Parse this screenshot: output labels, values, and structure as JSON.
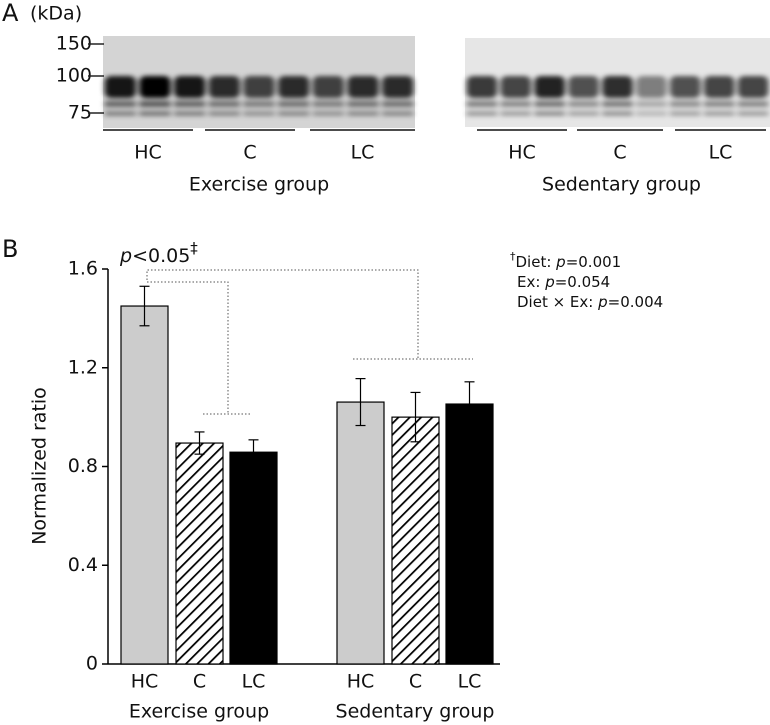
{
  "panel_a": {
    "label": "A",
    "unit": "(kDa)",
    "markers": [
      150,
      100,
      75
    ],
    "blots": [
      {
        "name": "Exercise group",
        "groups": [
          "HC",
          "C",
          "LC"
        ]
      },
      {
        "name": "Sedentary group",
        "groups": [
          "HC",
          "C",
          "LC"
        ]
      }
    ]
  },
  "chart_data": {
    "type": "bar",
    "panel_label": "B",
    "ylabel": "Normalized ratio",
    "ylim": [
      0,
      1.6
    ],
    "yticks": [
      0,
      0.4,
      0.8,
      1.2,
      1.6
    ],
    "fills": [
      "#cccccc",
      "#ffffff",
      "#000000"
    ],
    "hatch": [
      false,
      true,
      false
    ],
    "groups": [
      {
        "name": "Exercise group",
        "categories": [
          "HC",
          "C",
          "LC"
        ],
        "values": [
          1.45,
          0.895,
          0.858
        ],
        "errors": [
          0.08,
          0.045,
          0.05
        ]
      },
      {
        "name": "Sedentary group",
        "categories": [
          "HC",
          "C",
          "LC"
        ],
        "values": [
          1.061,
          1.0,
          1.053
        ],
        "errors": [
          0.095,
          0.1,
          0.09
        ]
      }
    ],
    "significance": {
      "symbol": "p",
      "text": "<0.05",
      "mark": "‡"
    },
    "p_symbol": "p",
    "stats": [
      {
        "mark": "†",
        "text": "Diet: ",
        "p": "=0.001"
      },
      {
        "text": "Ex: ",
        "p": "=0.054"
      },
      {
        "text": "Diet × Ex: ",
        "p": "=0.004"
      }
    ]
  }
}
